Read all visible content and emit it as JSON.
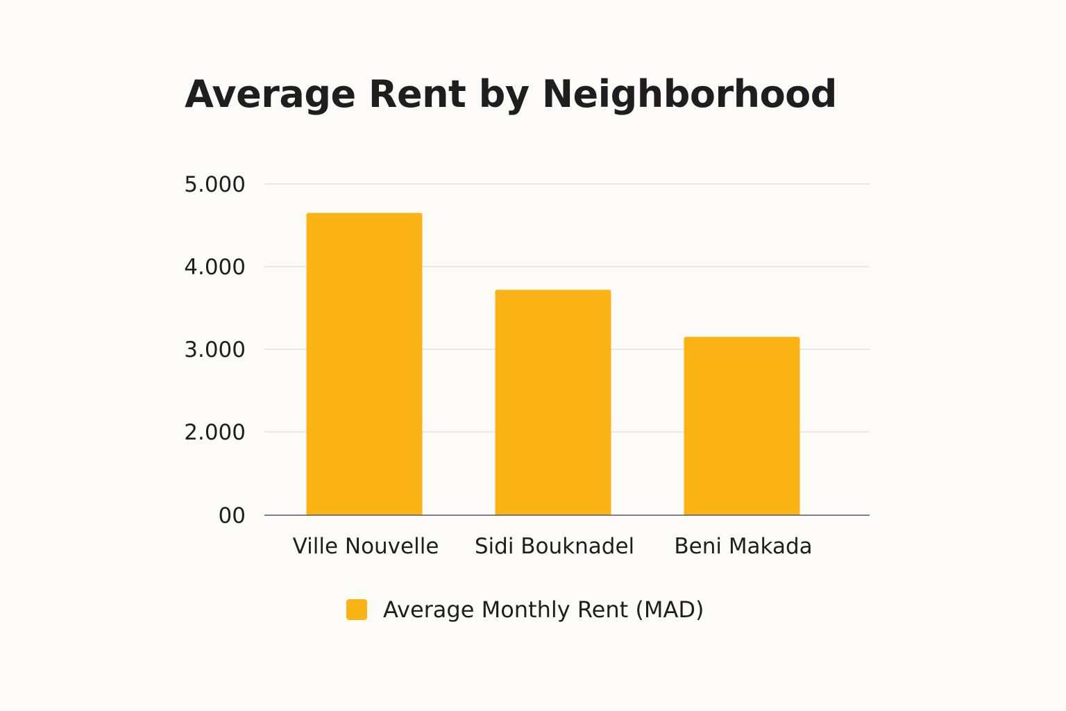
{
  "chart_data": {
    "type": "bar",
    "title": "Average Rent by Neighborhood",
    "categories": [
      "Ville Nouvelle",
      "Sidi Bouknadel",
      "Beni Makada"
    ],
    "series": [
      {
        "name": "Average Monthly Rent (MAD)",
        "values": [
          4650,
          3720,
          3150
        ],
        "color": "#fcb316"
      }
    ],
    "y_ticks": [
      0,
      2000,
      3000,
      4000,
      5000
    ],
    "y_tick_labels": [
      "00",
      "2.000",
      "3.000",
      "4.000",
      "5.000"
    ],
    "ylim": [
      0,
      5000
    ],
    "xlabel": "",
    "ylabel": "",
    "grid": true,
    "legend_position": "bottom"
  }
}
